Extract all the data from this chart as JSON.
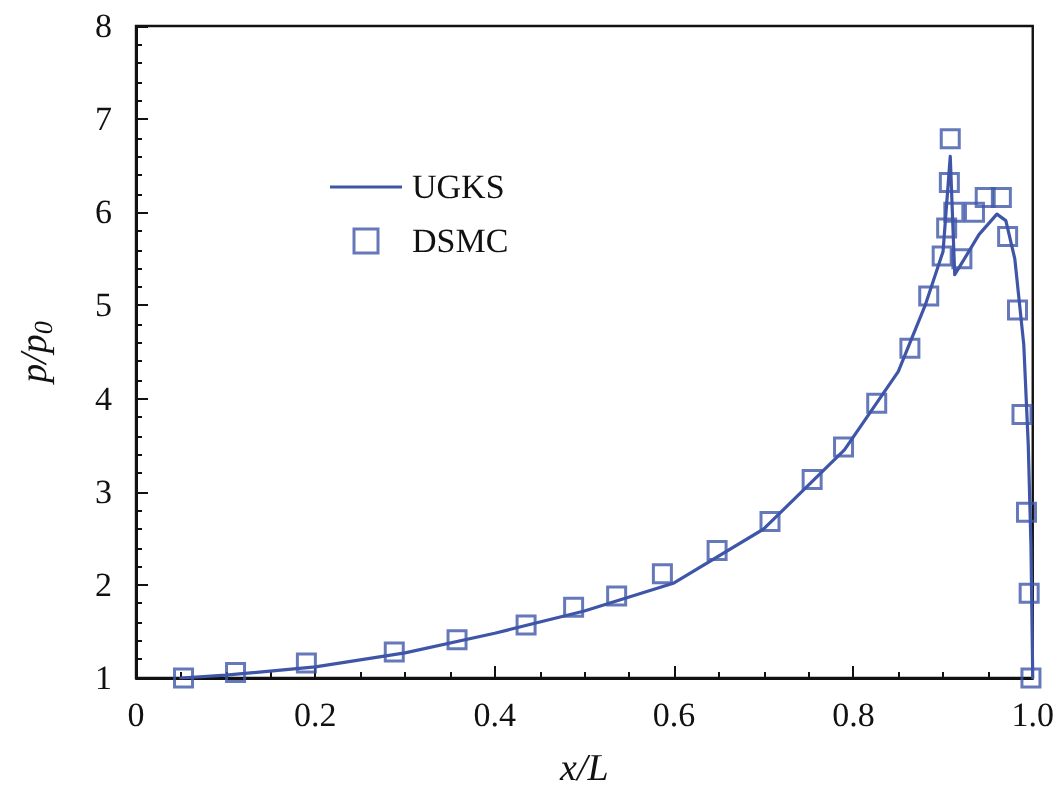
{
  "chart_data": {
    "type": "line",
    "xlabel": "x/L",
    "ylabel": "p/p$_{0}$",
    "xlim": [
      0,
      1
    ],
    "ylim": [
      1,
      8
    ],
    "xticks": [
      0,
      0.2,
      0.4,
      0.6,
      0.8,
      {
        "value": 1,
        "label": "1.0"
      }
    ],
    "yticks": [
      1,
      2,
      3,
      4,
      5,
      6,
      7,
      8
    ],
    "grid": false,
    "legend": "top left",
    "series": [
      {
        "name": "UGKS",
        "color": "#3f56a8",
        "marker": "none",
        "line_style": "solid",
        "x": [
          0.05,
          0.1,
          0.2,
          0.3,
          0.4,
          0.5,
          0.6,
          0.7,
          0.79,
          0.85,
          0.88,
          0.9,
          0.908,
          0.913,
          0.92,
          0.94,
          0.96,
          0.97,
          0.98,
          0.99,
          0.995,
          0.998,
          1.0
        ],
        "values": [
          1.0,
          1.03,
          1.12,
          1.27,
          1.48,
          1.72,
          2.02,
          2.6,
          3.45,
          4.29,
          5.0,
          5.58,
          6.6,
          5.33,
          5.44,
          5.76,
          5.98,
          5.91,
          5.5,
          4.58,
          3.5,
          2.42,
          1.0
        ]
      },
      {
        "name": "DSMC",
        "type": "scatter",
        "color": "#3f56a8",
        "marker": "square",
        "x": [
          0.053,
          0.111,
          0.19,
          0.288,
          0.358,
          0.435,
          0.488,
          0.536,
          0.587,
          0.648,
          0.707,
          0.754,
          0.789,
          0.826,
          0.863,
          0.884,
          0.899,
          0.904,
          0.907,
          0.908,
          0.912,
          0.921,
          0.935,
          0.947,
          0.965,
          0.972,
          0.983,
          0.988,
          0.993,
          0.996,
          0.998
        ],
        "values": [
          1.0,
          1.06,
          1.16,
          1.28,
          1.41,
          1.57,
          1.76,
          1.88,
          2.12,
          2.37,
          2.68,
          3.13,
          3.48,
          3.95,
          4.54,
          5.1,
          5.53,
          5.83,
          6.32,
          6.79,
          6.0,
          5.5,
          6.0,
          6.16,
          6.16,
          5.74,
          4.95,
          3.83,
          2.78,
          1.91,
          1.0
        ]
      }
    ]
  }
}
